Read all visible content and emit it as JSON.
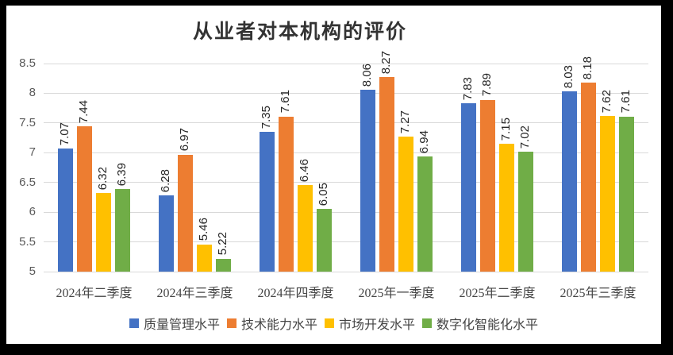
{
  "chart_data": {
    "type": "bar",
    "title": "从业者对本机构的评价",
    "categories": [
      "2024年二季度",
      "2024年三季度",
      "2024年四季度",
      "2025年一季度",
      "2025年二季度",
      "2025年三季度"
    ],
    "series": [
      {
        "name": "质量管理水平",
        "color": "#4472C4",
        "values": [
          7.07,
          6.28,
          7.35,
          8.06,
          7.83,
          8.03
        ]
      },
      {
        "name": "技术能力水平",
        "color": "#ED7D31",
        "values": [
          7.44,
          6.97,
          7.61,
          8.27,
          7.89,
          8.18
        ]
      },
      {
        "name": "市场开发水平",
        "color": "#FFC000",
        "values": [
          6.32,
          5.46,
          6.46,
          7.27,
          7.15,
          7.62
        ]
      },
      {
        "name": "数字化智能化水平",
        "color": "#70AD47",
        "values": [
          6.39,
          5.22,
          6.05,
          6.94,
          7.02,
          7.61
        ]
      }
    ],
    "ylim": [
      5,
      8.5
    ],
    "yticks": [
      "5",
      "5.5",
      "6",
      "6.5",
      "7",
      "7.5",
      "8",
      "8.5"
    ],
    "grid": true,
    "legend_position": "bottom",
    "data_labels": true,
    "data_label_rotation": 90,
    "data_label_decimals": 2
  },
  "colors": {
    "background": "#FFFFFF",
    "frame": "#000000",
    "grid": "#D9D9D9",
    "axis_text": "#595959",
    "category_text": "#444444",
    "title_text": "#333333",
    "data_label_text": "#262626"
  }
}
